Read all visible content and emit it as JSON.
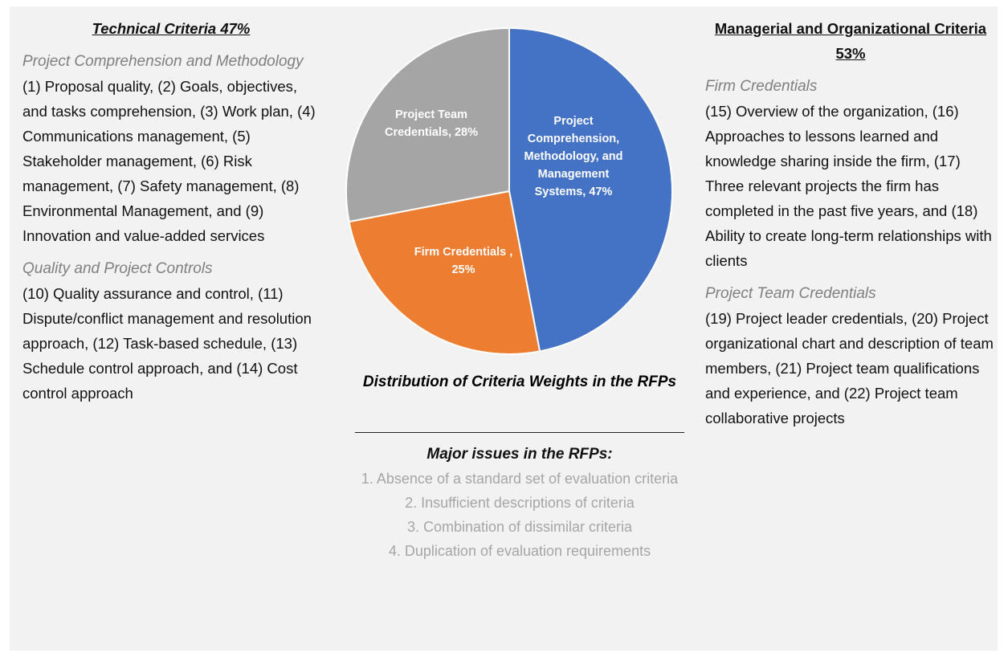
{
  "left": {
    "title": "Technical Criteria 47%",
    "sections": [
      {
        "heading": "Project Comprehension and Methodology",
        "text": "(1) Proposal quality, (2) Goals, objectives, and tasks comprehension, (3) Work plan, (4) Communications management, (5) Stakeholder management, (6) Risk management, (7) Safety management, (8) Environmental Management, and (9) Innovation and value-added services"
      },
      {
        "heading": "Quality and Project Controls",
        "text": "(10) Quality assurance and control, (11) Dispute/conflict management and resolution approach, (12) Task-based schedule, (13) Schedule control approach, and (14) Cost control approach"
      }
    ]
  },
  "right": {
    "title": "Managerial and Organizational Criteria 53%",
    "sections": [
      {
        "heading": "Firm Credentials",
        "text": "(15) Overview of the organization, (16) Approaches to lessons learned and knowledge sharing inside the firm, (17) Three relevant projects the firm has completed in the past five years, and (18) Ability to create long-term relationships with clients"
      },
      {
        "heading": "Project Team Credentials",
        "text": "(19) Project leader credentials, (20) Project organizational chart and description of team members, (21) Project team qualifications and experience, and (22) Project team collaborative projects"
      }
    ]
  },
  "chart_data": {
    "type": "pie",
    "title": "Distribution of Criteria Weights in the RFPs",
    "values": [
      47,
      25,
      28
    ],
    "value_labels": [
      "Project Comprehension, Methodology, and Management Systems, 47%",
      "Firm Credentials , 25%",
      "Project Team Credentials, 28%"
    ],
    "colors": [
      "#4472c4",
      "#ed7d31",
      "#a5a5a5"
    ]
  },
  "issues": {
    "title": "Major issues in the RFPs:",
    "items": [
      "1. Absence of a standard set of evaluation criteria",
      "2. Insufficient descriptions of criteria",
      "3. Combination of dissimilar criteria",
      "4. Duplication of evaluation requirements"
    ]
  }
}
